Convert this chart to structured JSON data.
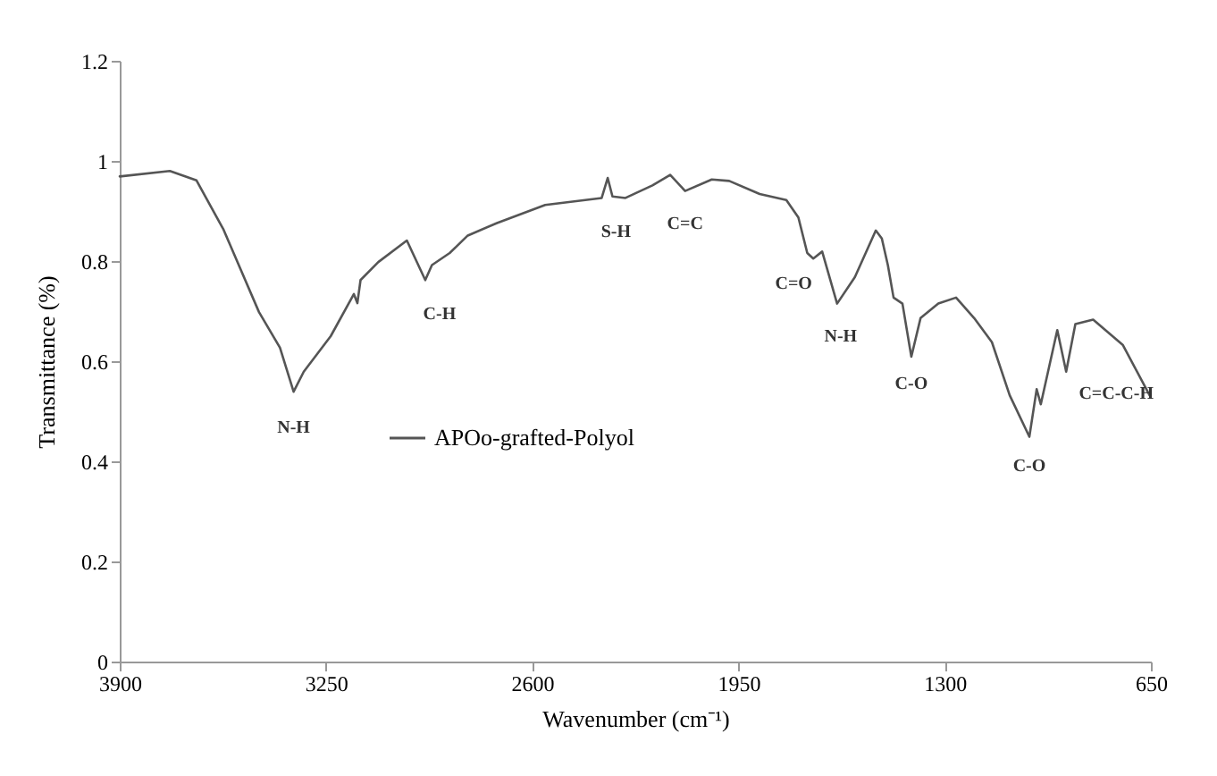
{
  "chart_data": {
    "type": "line",
    "xlabel": "Wavenumber (cm⁻¹)",
    "ylabel": "Transmittance (%)",
    "xlim": [
      3900,
      650
    ],
    "xticks": [
      3900,
      3250,
      2600,
      1950,
      1300,
      650
    ],
    "ylim": [
      0,
      1.2
    ],
    "yticks": [
      0,
      0.2,
      0.4,
      0.6,
      0.8,
      1,
      1.2
    ],
    "grid": false,
    "legend": "left",
    "marker": "none",
    "line_style": "solid",
    "series": [
      {
        "name": "APOo-grafted-Polyol",
        "color": "#555555",
        "x": [
          3900,
          3742,
          3658,
          3573,
          3461,
          3395,
          3352,
          3320,
          3235,
          3162,
          3151,
          3141,
          3085,
          2995,
          2937,
          2916,
          2860,
          2803,
          2711,
          2559,
          2381,
          2362,
          2347,
          2306,
          2221,
          2165,
          2118,
          2034,
          1979,
          1883,
          1799,
          1761,
          1733,
          1714,
          1686,
          1639,
          1583,
          1517,
          1498,
          1479,
          1461,
          1433,
          1405,
          1376,
          1320,
          1264,
          1207,
          1151,
          1095,
          1033,
          1010,
          997,
          945,
          917,
          888,
          832,
          738,
          654
        ],
        "values": [
          0.969,
          0.98,
          0.961,
          0.863,
          0.698,
          0.627,
          0.539,
          0.579,
          0.65,
          0.734,
          0.716,
          0.762,
          0.798,
          0.841,
          0.762,
          0.792,
          0.816,
          0.851,
          0.876,
          0.912,
          0.926,
          0.966,
          0.929,
          0.926,
          0.951,
          0.972,
          0.94,
          0.963,
          0.96,
          0.934,
          0.922,
          0.887,
          0.816,
          0.805,
          0.819,
          0.715,
          0.768,
          0.861,
          0.845,
          0.792,
          0.727,
          0.715,
          0.609,
          0.686,
          0.715,
          0.727,
          0.686,
          0.638,
          0.532,
          0.449,
          0.544,
          0.514,
          0.662,
          0.579,
          0.674,
          0.683,
          0.632,
          0.532
        ]
      }
    ],
    "annotations": [
      {
        "text": "N-H",
        "x": 3352,
        "y": 0.539
      },
      {
        "text": "C-H",
        "x": 2937,
        "y": 0.762
      },
      {
        "text": "S-H",
        "x": 2381,
        "y": 0.926
      },
      {
        "text": "C=C",
        "x": 2118,
        "y": 0.94
      },
      {
        "text": "C=O",
        "x": 1714,
        "y": 0.805
      },
      {
        "text": "N-H",
        "x": 1639,
        "y": 0.715
      },
      {
        "text": "C-O",
        "x": 1405,
        "y": 0.609
      },
      {
        "text": "C-O",
        "x": 1033,
        "y": 0.449
      },
      {
        "text": "C=C-C-H",
        "x": 917,
        "y": 0.579
      }
    ]
  }
}
